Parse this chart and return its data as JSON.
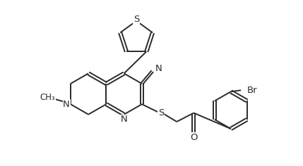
{
  "background_color": "#ffffff",
  "line_color": "#2a2a2a",
  "line_width": 1.4,
  "font_size": 9.5,
  "fig_width": 4.29,
  "fig_height": 2.36,
  "xlim": [
    0.0,
    10.2
  ],
  "ylim": [
    1.5,
    7.5
  ]
}
